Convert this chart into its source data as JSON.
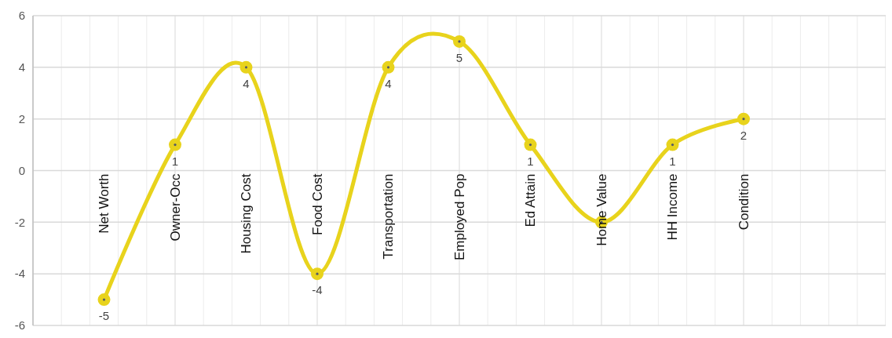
{
  "chart_data": {
    "type": "line",
    "categories": [
      "Net Worth",
      "Owner-Occ",
      "Housing Cost",
      "Food Cost",
      "Transportation",
      "Employed Pop",
      "Ed Attain",
      "Home Value",
      "HH Income",
      "Condition"
    ],
    "series": [
      {
        "color": "#e8d31c",
        "values": [
          -5,
          1,
          4,
          -4,
          4,
          5,
          1,
          -2,
          1,
          2
        ],
        "value_labels": [
          "-5",
          "1",
          "4",
          "-4",
          "4",
          "5",
          "1",
          null,
          "1",
          "2"
        ]
      }
    ],
    "ylim": [
      -6,
      6
    ],
    "yticks": [
      -6,
      -4,
      -2,
      0,
      2,
      4,
      6
    ],
    "grid": true,
    "marker": "circle",
    "line_style": "solid"
  }
}
